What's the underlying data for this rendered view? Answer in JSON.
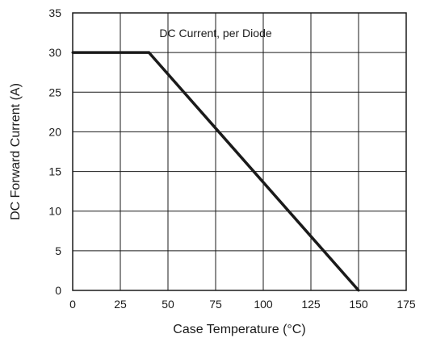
{
  "chart_data": {
    "type": "line",
    "annotation": "DC Current, per Diode",
    "xlabel": "Case Temperature (°C)",
    "ylabel": "DC Forward Current (A)",
    "xlim": [
      0,
      175
    ],
    "ylim": [
      0,
      35
    ],
    "x_ticks": [
      "0",
      "25",
      "50",
      "75",
      "100",
      "125",
      "150",
      "175"
    ],
    "y_ticks": [
      "0",
      "5",
      "10",
      "15",
      "20",
      "25",
      "30",
      "35"
    ],
    "grid": true,
    "legend": "none",
    "series": [
      {
        "x": [
          0,
          40,
          150
        ],
        "y": [
          30,
          30,
          0
        ]
      }
    ]
  }
}
